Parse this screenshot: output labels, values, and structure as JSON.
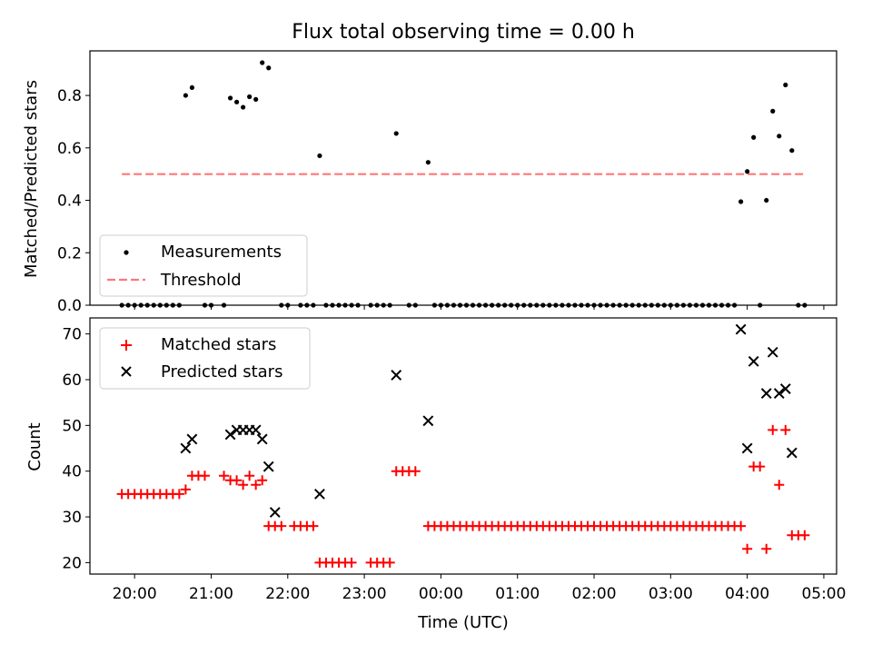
{
  "chart_data": [
    {
      "type": "scatter",
      "title": "Flux total observing time = 0.00 h",
      "xlabel": "",
      "ylabel": "Matched/Predicted stars",
      "xlim": [
        "19:25",
        "05:10"
      ],
      "ylim": [
        0,
        0.97
      ],
      "yticks": [
        "0.0",
        "0.2",
        "0.4",
        "0.6",
        "0.8"
      ],
      "legend": {
        "position": "lower-left",
        "entries": [
          "Measurements",
          "Threshold"
        ]
      },
      "threshold": {
        "name": "Threshold",
        "value": 0.5,
        "x_start": "19:50",
        "x_end": "04:45",
        "color": "#ff7777"
      },
      "series": [
        {
          "name": "Measurements",
          "color": "#000000",
          "points": [
            [
              "19:50",
              0
            ],
            [
              "19:55",
              0
            ],
            [
              "20:00",
              0
            ],
            [
              "20:05",
              0
            ],
            [
              "20:10",
              0
            ],
            [
              "20:15",
              0
            ],
            [
              "20:20",
              0
            ],
            [
              "20:25",
              0
            ],
            [
              "20:30",
              0
            ],
            [
              "20:35",
              0
            ],
            [
              "20:40",
              0.8
            ],
            [
              "20:45",
              0.83
            ],
            [
              "20:55",
              0
            ],
            [
              "21:00",
              0
            ],
            [
              "21:10",
              0
            ],
            [
              "21:15",
              0.79
            ],
            [
              "21:20",
              0.775
            ],
            [
              "21:25",
              0.755
            ],
            [
              "21:30",
              0.795
            ],
            [
              "21:35",
              0.785
            ],
            [
              "21:40",
              0.925
            ],
            [
              "21:45",
              0.905
            ],
            [
              "21:55",
              0
            ],
            [
              "22:00",
              0
            ],
            [
              "22:10",
              0
            ],
            [
              "22:15",
              0
            ],
            [
              "22:20",
              0
            ],
            [
              "22:25",
              0.57
            ],
            [
              "22:30",
              0
            ],
            [
              "22:35",
              0
            ],
            [
              "22:40",
              0
            ],
            [
              "22:45",
              0
            ],
            [
              "22:50",
              0
            ],
            [
              "22:55",
              0
            ],
            [
              "23:05",
              0
            ],
            [
              "23:10",
              0
            ],
            [
              "23:15",
              0
            ],
            [
              "23:20",
              0
            ],
            [
              "23:25",
              0.655
            ],
            [
              "23:35",
              0
            ],
            [
              "23:40",
              0
            ],
            [
              "23:50",
              0.545
            ],
            [
              "23:55",
              0
            ],
            [
              "00:00",
              0
            ],
            [
              "00:05",
              0
            ],
            [
              "00:10",
              0
            ],
            [
              "00:15",
              0
            ],
            [
              "00:20",
              0
            ],
            [
              "00:25",
              0
            ],
            [
              "00:30",
              0
            ],
            [
              "00:35",
              0
            ],
            [
              "00:40",
              0
            ],
            [
              "00:45",
              0
            ],
            [
              "00:50",
              0
            ],
            [
              "00:55",
              0
            ],
            [
              "01:00",
              0
            ],
            [
              "01:05",
              0
            ],
            [
              "01:10",
              0
            ],
            [
              "01:15",
              0
            ],
            [
              "01:20",
              0
            ],
            [
              "01:25",
              0
            ],
            [
              "01:30",
              0
            ],
            [
              "01:35",
              0
            ],
            [
              "01:40",
              0
            ],
            [
              "01:45",
              0
            ],
            [
              "01:50",
              0
            ],
            [
              "01:55",
              0
            ],
            [
              "02:00",
              0
            ],
            [
              "02:05",
              0
            ],
            [
              "02:10",
              0
            ],
            [
              "02:15",
              0
            ],
            [
              "02:20",
              0
            ],
            [
              "02:25",
              0
            ],
            [
              "02:30",
              0
            ],
            [
              "02:35",
              0
            ],
            [
              "02:40",
              0
            ],
            [
              "02:45",
              0
            ],
            [
              "02:50",
              0
            ],
            [
              "02:55",
              0
            ],
            [
              "03:00",
              0
            ],
            [
              "03:05",
              0
            ],
            [
              "03:10",
              0
            ],
            [
              "03:15",
              0
            ],
            [
              "03:20",
              0
            ],
            [
              "03:25",
              0
            ],
            [
              "03:30",
              0
            ],
            [
              "03:35",
              0
            ],
            [
              "03:40",
              0
            ],
            [
              "03:45",
              0
            ],
            [
              "03:50",
              0
            ],
            [
              "03:55",
              0.395
            ],
            [
              "04:00",
              0.51
            ],
            [
              "04:05",
              0.64
            ],
            [
              "04:10",
              0
            ],
            [
              "04:15",
              0.4
            ],
            [
              "04:20",
              0.74
            ],
            [
              "04:25",
              0.645
            ],
            [
              "04:30",
              0.84
            ],
            [
              "04:35",
              0.59
            ],
            [
              "04:40",
              0
            ],
            [
              "04:45",
              0
            ]
          ]
        }
      ]
    },
    {
      "type": "scatter",
      "title": "",
      "xlabel": "Time (UTC)",
      "ylabel": "Count",
      "xlim": [
        "19:25",
        "05:10"
      ],
      "ylim": [
        17.5,
        73.5
      ],
      "yticks": [
        "20",
        "30",
        "40",
        "50",
        "60",
        "70"
      ],
      "xticks": [
        "20:00",
        "21:00",
        "22:00",
        "23:00",
        "00:00",
        "01:00",
        "02:00",
        "03:00",
        "04:00",
        "05:00"
      ],
      "legend": {
        "position": "top-left",
        "entries": [
          "Matched stars",
          "Predicted stars"
        ]
      },
      "series": [
        {
          "name": "Matched stars",
          "marker": "+",
          "color": "#ff0000",
          "points": [
            [
              "19:50",
              35
            ],
            [
              "19:55",
              35
            ],
            [
              "20:00",
              35
            ],
            [
              "20:05",
              35
            ],
            [
              "20:10",
              35
            ],
            [
              "20:15",
              35
            ],
            [
              "20:20",
              35
            ],
            [
              "20:25",
              35
            ],
            [
              "20:30",
              35
            ],
            [
              "20:35",
              35
            ],
            [
              "20:40",
              36
            ],
            [
              "20:45",
              39
            ],
            [
              "20:50",
              39
            ],
            [
              "20:55",
              39
            ],
            [
              "21:10",
              39
            ],
            [
              "21:15",
              38
            ],
            [
              "21:20",
              38
            ],
            [
              "21:25",
              37
            ],
            [
              "21:30",
              39
            ],
            [
              "21:35",
              37
            ],
            [
              "21:40",
              38
            ],
            [
              "21:45",
              28
            ],
            [
              "21:50",
              28
            ],
            [
              "21:55",
              28
            ],
            [
              "22:05",
              28
            ],
            [
              "22:10",
              28
            ],
            [
              "22:15",
              28
            ],
            [
              "22:20",
              28
            ],
            [
              "22:25",
              20
            ],
            [
              "22:30",
              20
            ],
            [
              "22:35",
              20
            ],
            [
              "22:40",
              20
            ],
            [
              "22:45",
              20
            ],
            [
              "22:50",
              20
            ],
            [
              "23:05",
              20
            ],
            [
              "23:10",
              20
            ],
            [
              "23:15",
              20
            ],
            [
              "23:20",
              20
            ],
            [
              "23:25",
              40
            ],
            [
              "23:30",
              40
            ],
            [
              "23:35",
              40
            ],
            [
              "23:40",
              40
            ],
            [
              "23:50",
              28
            ],
            [
              "23:55",
              28
            ],
            [
              "00:00",
              28
            ],
            [
              "00:05",
              28
            ],
            [
              "00:10",
              28
            ],
            [
              "00:15",
              28
            ],
            [
              "00:20",
              28
            ],
            [
              "00:25",
              28
            ],
            [
              "00:30",
              28
            ],
            [
              "00:35",
              28
            ],
            [
              "00:40",
              28
            ],
            [
              "00:45",
              28
            ],
            [
              "00:50",
              28
            ],
            [
              "00:55",
              28
            ],
            [
              "01:00",
              28
            ],
            [
              "01:05",
              28
            ],
            [
              "01:10",
              28
            ],
            [
              "01:15",
              28
            ],
            [
              "01:20",
              28
            ],
            [
              "01:25",
              28
            ],
            [
              "01:30",
              28
            ],
            [
              "01:35",
              28
            ],
            [
              "01:40",
              28
            ],
            [
              "01:45",
              28
            ],
            [
              "01:50",
              28
            ],
            [
              "01:55",
              28
            ],
            [
              "02:00",
              28
            ],
            [
              "02:05",
              28
            ],
            [
              "02:10",
              28
            ],
            [
              "02:15",
              28
            ],
            [
              "02:20",
              28
            ],
            [
              "02:25",
              28
            ],
            [
              "02:30",
              28
            ],
            [
              "02:35",
              28
            ],
            [
              "02:40",
              28
            ],
            [
              "02:45",
              28
            ],
            [
              "02:50",
              28
            ],
            [
              "02:55",
              28
            ],
            [
              "03:00",
              28
            ],
            [
              "03:05",
              28
            ],
            [
              "03:10",
              28
            ],
            [
              "03:15",
              28
            ],
            [
              "03:20",
              28
            ],
            [
              "03:25",
              28
            ],
            [
              "03:30",
              28
            ],
            [
              "03:35",
              28
            ],
            [
              "03:40",
              28
            ],
            [
              "03:45",
              28
            ],
            [
              "03:50",
              28
            ],
            [
              "03:55",
              28
            ],
            [
              "04:00",
              23
            ],
            [
              "04:05",
              41
            ],
            [
              "04:10",
              41
            ],
            [
              "04:15",
              23
            ],
            [
              "04:20",
              49
            ],
            [
              "04:25",
              37
            ],
            [
              "04:30",
              49
            ],
            [
              "04:35",
              26
            ],
            [
              "04:40",
              26
            ],
            [
              "04:45",
              26
            ]
          ]
        },
        {
          "name": "Predicted stars",
          "marker": "x",
          "color": "#000000",
          "points": [
            [
              "20:40",
              45
            ],
            [
              "20:45",
              47
            ],
            [
              "21:15",
              48
            ],
            [
              "21:20",
              49
            ],
            [
              "21:25",
              49
            ],
            [
              "21:30",
              49
            ],
            [
              "21:35",
              49
            ],
            [
              "21:40",
              47
            ],
            [
              "21:45",
              41
            ],
            [
              "21:50",
              31
            ],
            [
              "22:25",
              35
            ],
            [
              "23:25",
              61
            ],
            [
              "23:50",
              51
            ],
            [
              "03:55",
              71
            ],
            [
              "04:00",
              45
            ],
            [
              "04:05",
              64
            ],
            [
              "04:15",
              57
            ],
            [
              "04:20",
              66
            ],
            [
              "04:25",
              57
            ],
            [
              "04:30",
              58
            ],
            [
              "04:35",
              44
            ]
          ]
        }
      ]
    }
  ]
}
